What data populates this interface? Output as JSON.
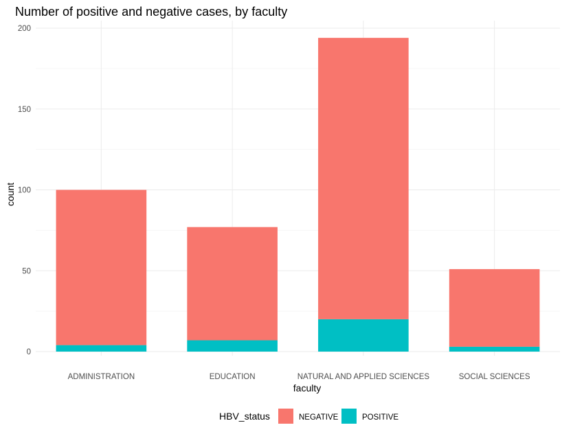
{
  "chart_data": {
    "type": "bar",
    "stacked": true,
    "title": "Number of positive and negative cases, by faculty",
    "xlabel": "faculty",
    "ylabel": "count",
    "categories": [
      "ADMINISTRATION",
      "EDUCATION",
      "NATURAL AND APPLIED SCIENCES",
      "SOCIAL SCIENCES"
    ],
    "series": [
      {
        "name": "NEGATIVE",
        "color": "#F8766D",
        "values": [
          96,
          70,
          174,
          48
        ]
      },
      {
        "name": "POSITIVE",
        "color": "#00BFC4",
        "values": [
          4,
          7,
          20,
          3
        ]
      }
    ],
    "ylim": [
      0,
      200
    ],
    "yticks": [
      0,
      50,
      100,
      150,
      200
    ],
    "grid": true,
    "legend": {
      "title": "HBV_status",
      "position": "bottom"
    }
  }
}
